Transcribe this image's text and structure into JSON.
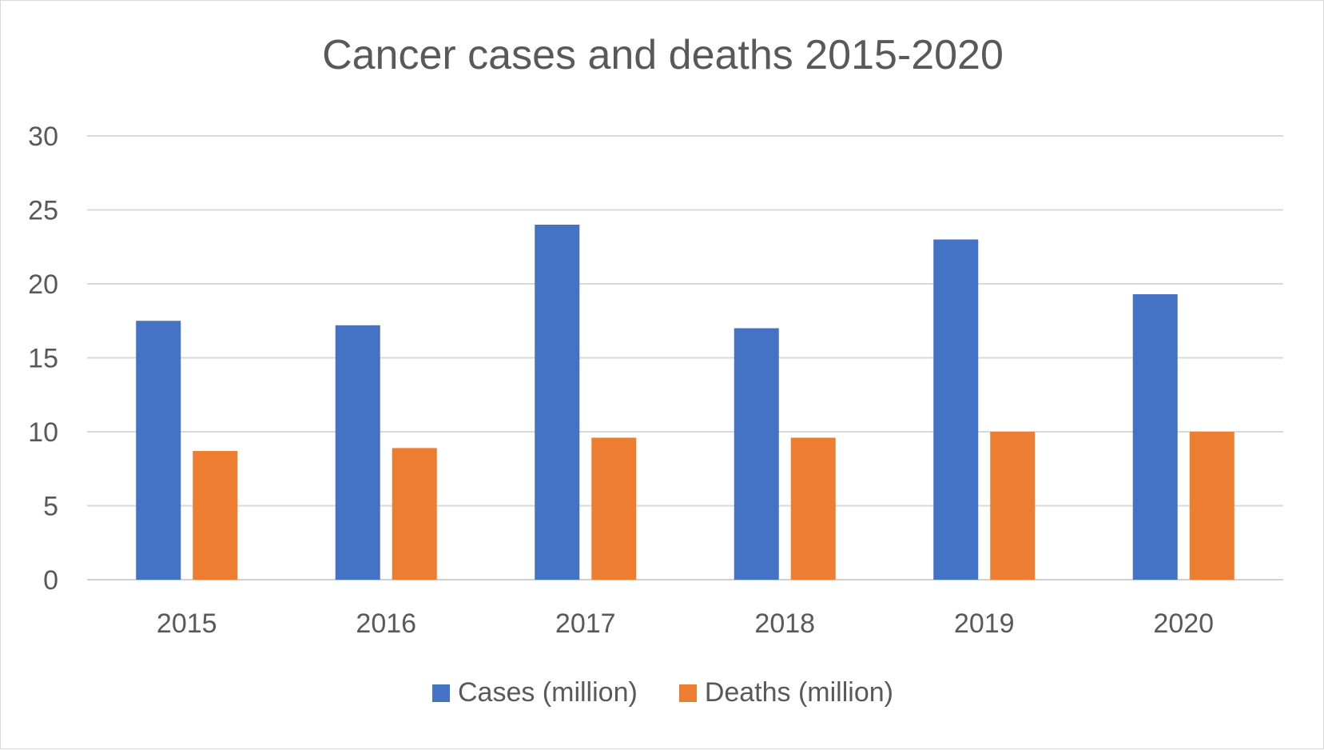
{
  "chart_data": {
    "type": "bar",
    "title": "Cancer cases and deaths 2015-2020",
    "xlabel": "",
    "ylabel": "",
    "categories": [
      "2015",
      "2016",
      "2017",
      "2018",
      "2019",
      "2020"
    ],
    "series": [
      {
        "name": "Cases (million)",
        "values": [
          17.5,
          17.2,
          24.0,
          17.0,
          23.0,
          19.3
        ],
        "color": "#4472c4"
      },
      {
        "name": "Deaths (million)",
        "values": [
          8.7,
          8.9,
          9.6,
          9.6,
          10.0,
          10.0
        ],
        "color": "#ed7d31"
      }
    ],
    "ylim": [
      0,
      30
    ],
    "yticks": [
      "0",
      "5",
      "10",
      "15",
      "20",
      "25",
      "30"
    ],
    "grid": true,
    "legend_position": "bottom"
  }
}
